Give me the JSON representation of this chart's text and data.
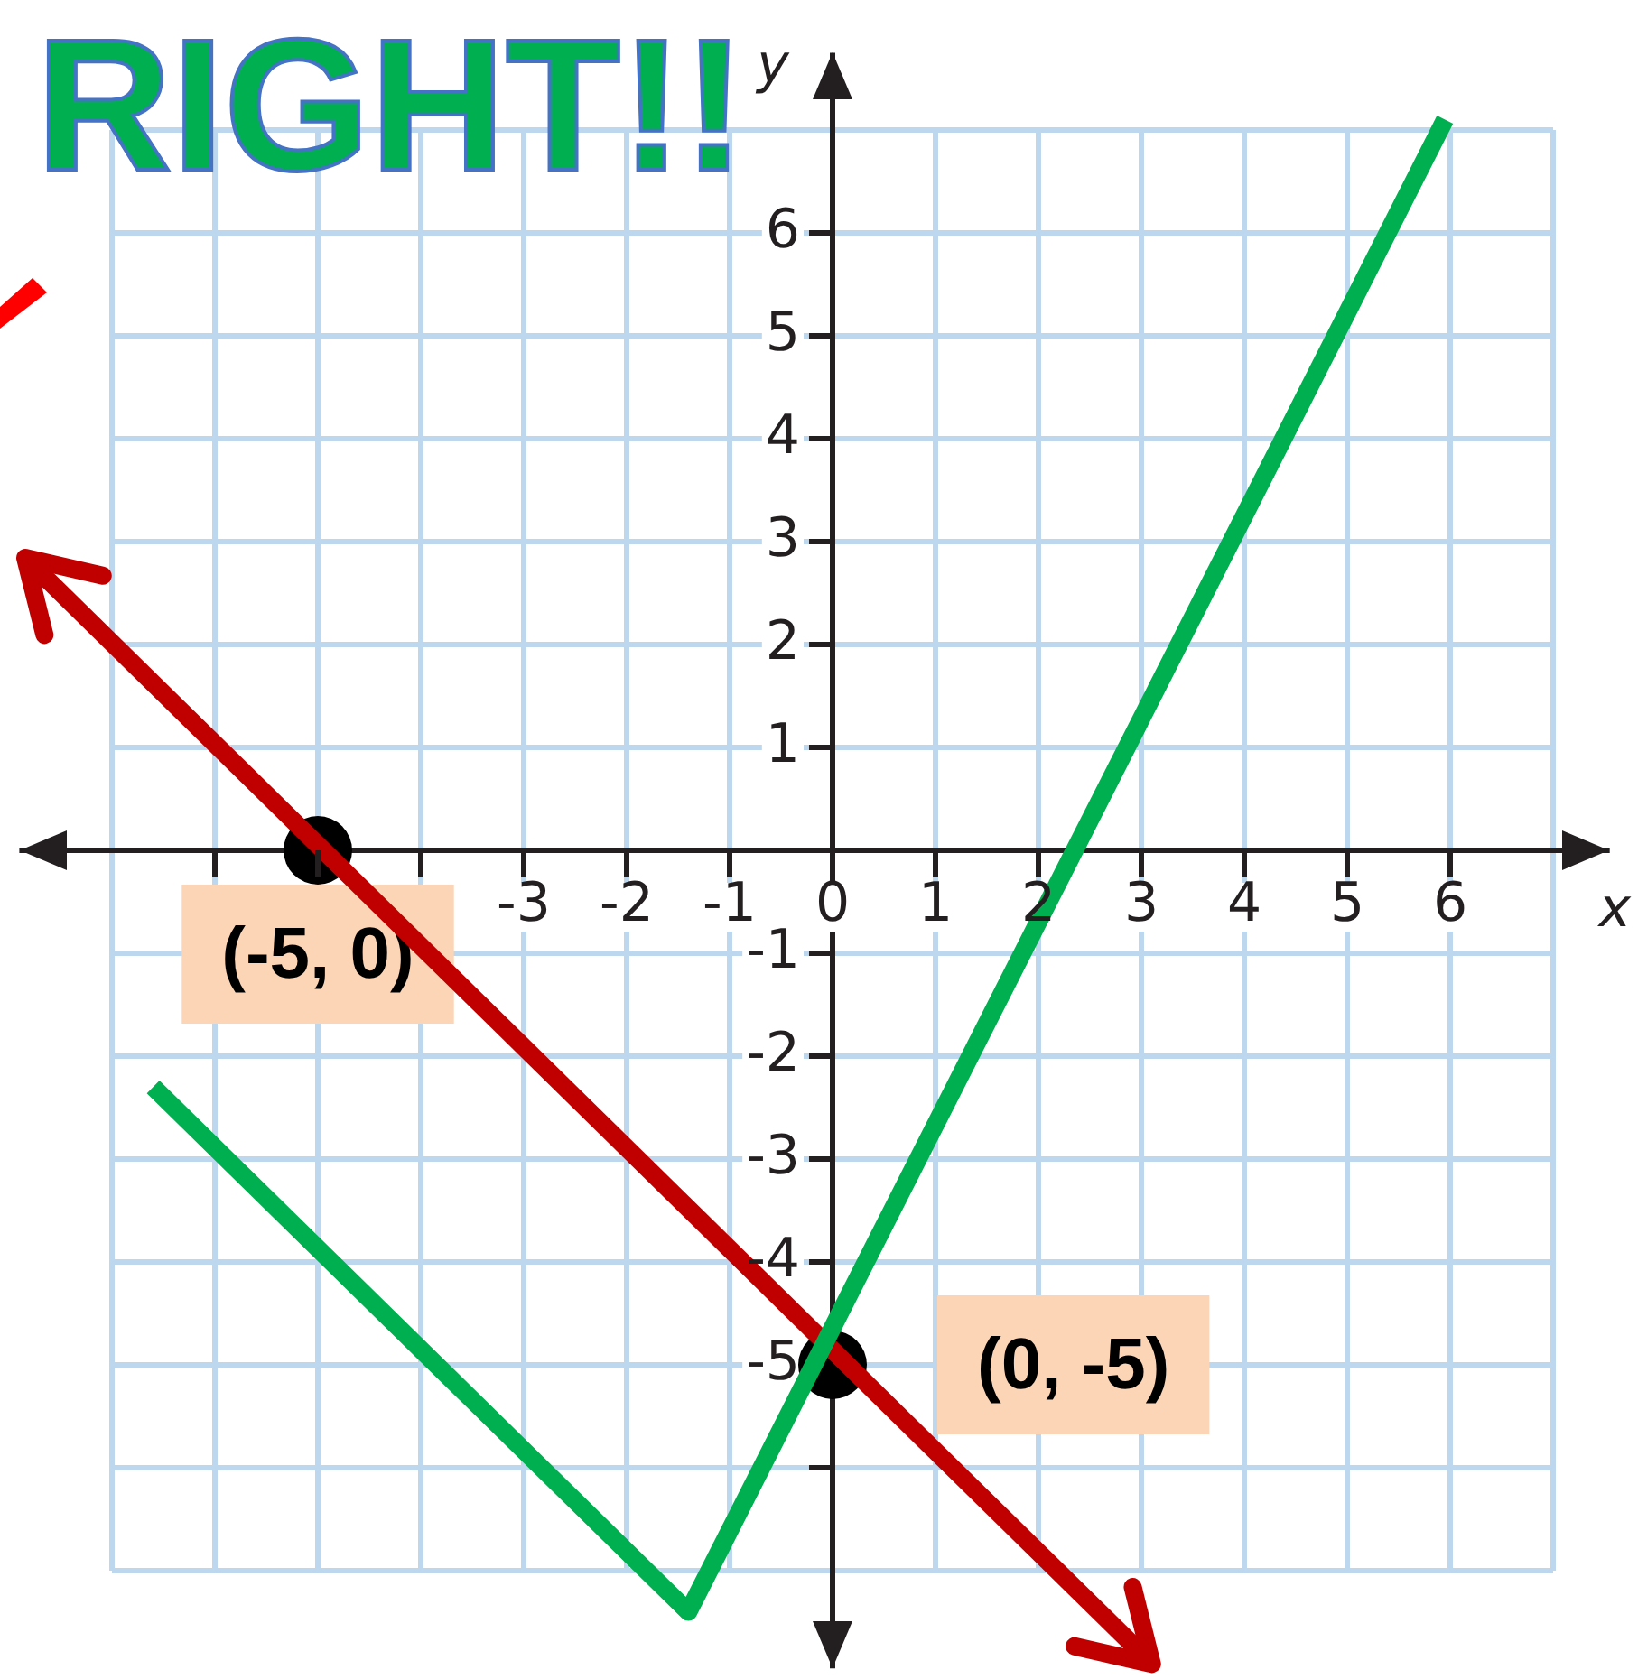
{
  "chart_data": {
    "type": "line",
    "title": "RIGHT!!",
    "xlabel": "x",
    "ylabel": "y",
    "series": [
      {
        "color": "#00b050",
        "marker": "none",
        "x": [
          -6.6,
          -1.4,
          5.95
        ],
        "values": [
          -2.3,
          -7.4,
          7.1
        ]
      },
      {
        "type": "line",
        "color": "#c00000",
        "marker": "none",
        "x": [
          -7.85,
          3.1
        ],
        "values": [
          2.85,
          -7.9
        ]
      },
      {
        "type": "scatter",
        "color": "#000000",
        "marker": "circle",
        "x": [
          -5,
          0
        ],
        "values": [
          0,
          -5
        ]
      }
    ],
    "annotations": [
      {
        "text": "(-5, 0)",
        "x": -5,
        "y": 0
      },
      {
        "text": "(0, -5)",
        "x": 0,
        "y": -5
      }
    ],
    "xlim": [
      -7.9,
      7.55
    ],
    "ylim": [
      -7.95,
      7.75
    ],
    "xticks": [
      {
        "value": -7,
        "label": null
      },
      {
        "value": -6,
        "label": null
      },
      {
        "value": -5,
        "label": null
      },
      {
        "value": -4,
        "label": null
      },
      -3,
      -2,
      -1,
      0,
      1,
      2,
      3,
      4,
      5,
      6,
      {
        "value": 7,
        "label": null
      }
    ],
    "yticks": [
      {
        "value": -7,
        "label": null
      },
      {
        "value": -6,
        "label": null
      },
      -5,
      -4,
      -3,
      -2,
      -1,
      1,
      2,
      3,
      4,
      5,
      6,
      {
        "value": 7,
        "label": null
      }
    ],
    "grid": true
  }
}
